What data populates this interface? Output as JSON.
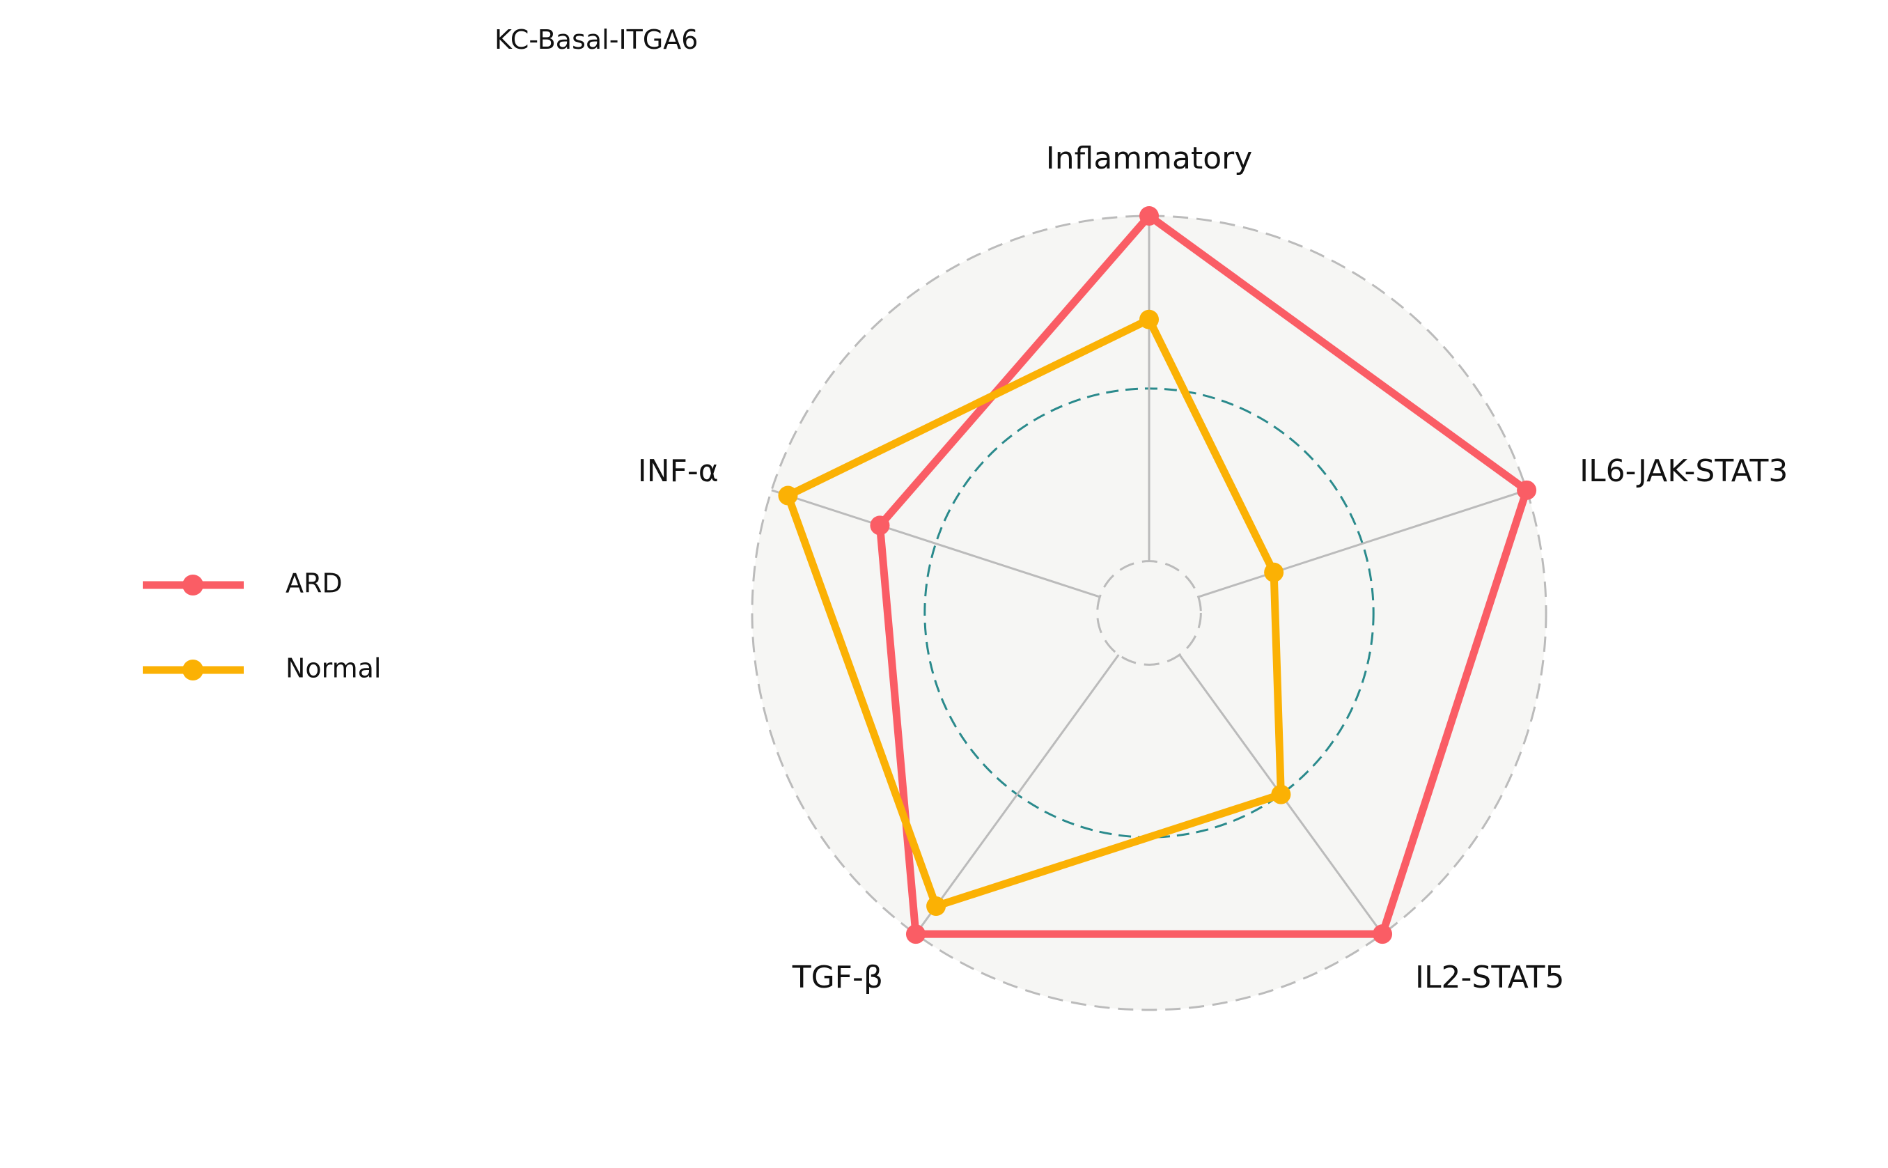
{
  "chart_data": {
    "type": "radar",
    "title": "KC-Basal-ITGA6",
    "axes": [
      "Inflammatory",
      "IL6-JAK-STAT3",
      "IL2-STAT5",
      "TGF-β",
      "INF-α"
    ],
    "rlim": [
      -0.15,
      1.0
    ],
    "reference_level": 0.5,
    "series": [
      {
        "name": "ARD",
        "color": "#fa5d65",
        "values": [
          1.0,
          1.0,
          1.0,
          1.0,
          0.67
        ]
      },
      {
        "name": "Normal",
        "color": "#fbb104",
        "values": [
          0.7,
          0.23,
          0.5,
          0.9,
          0.95
        ]
      }
    ],
    "legend": "left",
    "grid": true,
    "colors": {
      "grid": "#bbbbbb",
      "reference": "#2a8a8c",
      "background": "#f6f6f4"
    }
  }
}
